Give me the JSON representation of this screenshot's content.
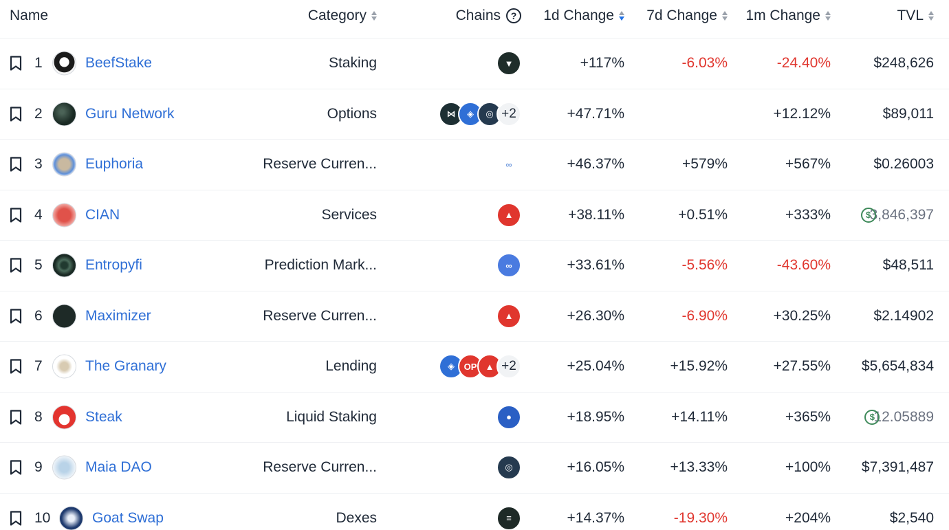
{
  "header": {
    "name": "Name",
    "category": "Category",
    "chains": "Chains",
    "change_1d": "1d Change",
    "change_7d": "7d Change",
    "change_1m": "1m Change",
    "tvl": "TVL",
    "help_glyph": "?"
  },
  "colors": {
    "link": "#2f6fd6",
    "negative": "#e0362e",
    "sort_active": "#2172e5"
  },
  "rows": [
    {
      "rank": "1",
      "name": "BeefStake",
      "category": "Staking",
      "chains": [
        "chain-v-icon"
      ],
      "chains_more": "",
      "d1": "+117%",
      "d7": "-6.03%",
      "m1": "-24.40%",
      "tvl": "$248,626"
    },
    {
      "rank": "2",
      "name": "Guru Network",
      "category": "Options",
      "chains": [
        "chain-dark-icon",
        "fantom-icon",
        "arbitrum-icon"
      ],
      "chains_more": "+2",
      "d1": "+47.71%",
      "d7": "",
      "m1": "+12.12%",
      "tvl": "$89,011"
    },
    {
      "rank": "3",
      "name": "Euphoria",
      "category": "Reserve Curren...",
      "chains": [
        "chain-link-icon"
      ],
      "chains_more": "",
      "d1": "+46.37%",
      "d7": "+579%",
      "m1": "+567%",
      "tvl": "$0.26003"
    },
    {
      "rank": "4",
      "name": "CIAN",
      "category": "Services",
      "chains": [
        "avalanche-icon"
      ],
      "chains_more": "",
      "d1": "+38.11%",
      "d7": "+0.51%",
      "m1": "+333%",
      "tvl": "3,846,397"
    },
    {
      "rank": "5",
      "name": "Entropyfi",
      "category": "Prediction Mark...",
      "chains": [
        "polygon-icon"
      ],
      "chains_more": "",
      "d1": "+33.61%",
      "d7": "-5.56%",
      "m1": "-43.60%",
      "tvl": "$48,511"
    },
    {
      "rank": "6",
      "name": "Maximizer",
      "category": "Reserve Curren...",
      "chains": [
        "avalanche-icon"
      ],
      "chains_more": "",
      "d1": "+26.30%",
      "d7": "-6.90%",
      "m1": "+30.25%",
      "tvl": "$2.14902"
    },
    {
      "rank": "7",
      "name": "The Granary",
      "category": "Lending",
      "chains": [
        "fantom-icon",
        "optimism-icon",
        "avalanche-icon"
      ],
      "chains_more": "+2",
      "d1": "+25.04%",
      "d7": "+15.92%",
      "m1": "+27.55%",
      "tvl": "$5,654,834"
    },
    {
      "rank": "8",
      "name": "Steak",
      "category": "Liquid Staking",
      "chains": [
        "chain-blue-icon"
      ],
      "chains_more": "",
      "d1": "+18.95%",
      "d7": "+14.11%",
      "m1": "+365%",
      "tvl": "12.05889"
    },
    {
      "rank": "9",
      "name": "Maia DAO",
      "category": "Reserve Curren...",
      "chains": [
        "arbitrum-icon"
      ],
      "chains_more": "",
      "d1": "+16.05%",
      "d7": "+13.33%",
      "m1": "+100%",
      "tvl": "$7,391,487"
    },
    {
      "rank": "10",
      "name": "Goat Swap",
      "category": "Dexes",
      "chains": [
        "solana-icon"
      ],
      "chains_more": "",
      "d1": "+14.37%",
      "d7": "-19.30%",
      "m1": "+204%",
      "tvl": "$2,540"
    }
  ]
}
